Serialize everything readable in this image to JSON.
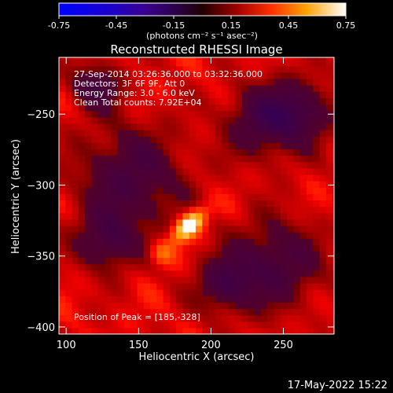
{
  "chart_data": {
    "type": "heatmap",
    "title": "Reconstructed RHESSI Image",
    "xlabel": "Heliocentric X (arcsec)",
    "ylabel": "Heliocentric Y (arcsec)",
    "xlim": [
      95,
      285
    ],
    "ylim": [
      -405,
      -210
    ],
    "xticks": [
      100,
      150,
      200,
      250
    ],
    "yticks": [
      -250,
      -300,
      -350,
      -400
    ],
    "colorbar": {
      "range": [
        -0.75,
        0.75
      ],
      "ticks": [
        "-0.75",
        "-0.45",
        "-0.15",
        "0.15",
        "0.45",
        "0.75"
      ],
      "units_label": "(photons cm⁻² s⁻¹ asec⁻²)",
      "colormap": "hot"
    },
    "annotations": [
      "27-Sep-2014 03:26:36.000 to 03:32:36.000",
      "Detectors: 3F 6F 9F, Att 0",
      "Energy Range: 3.0 - 6.0 keV",
      "Clean     Total counts: 7.92E+04"
    ],
    "peak_label": "Position of Peak = [185,-328]",
    "peak": {
      "x": 185,
      "y": -328,
      "value": 0.75
    },
    "secondary_source": {
      "x": 166,
      "y": -348,
      "value": 0.35
    }
  },
  "footer": {
    "timestamp": "17-May-2022 15:22"
  }
}
